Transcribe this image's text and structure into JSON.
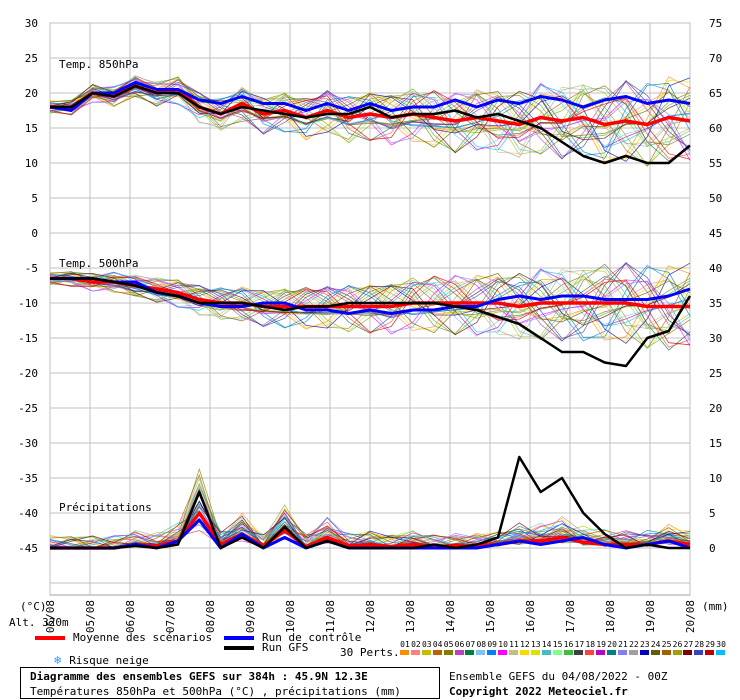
{
  "chart_data": {
    "type": "line",
    "panels": [
      {
        "label": "Temp. 850hPa",
        "left_ticks": [
          30,
          25,
          20,
          15,
          10,
          5,
          0
        ],
        "right_ticks": [
          75,
          70,
          65,
          60,
          55,
          50,
          45
        ],
        "ylim": [
          0,
          30
        ],
        "series": [
          {
            "name": "Moyenne des scénarios",
            "color": "#ff0000",
            "values": [
              18,
              18,
              20,
              19.5,
              21,
              20,
              20.5,
              18,
              17,
              18.5,
              17,
              17.5,
              16.5,
              17.5,
              16.5,
              17,
              16.5,
              17,
              16.5,
              16,
              16.5,
              16,
              15.5,
              16.5,
              16,
              16.5,
              15.5,
              16,
              15.5,
              16.5,
              16
            ]
          },
          {
            "name": "Run de contrôle",
            "color": "#0000ff",
            "values": [
              18,
              17.5,
              20,
              20,
              21.5,
              20.5,
              20.5,
              19,
              18.5,
              19.5,
              18.5,
              18.5,
              17.5,
              18.5,
              17.5,
              18.5,
              17.5,
              18,
              18,
              19,
              18,
              19,
              18.5,
              19.5,
              19,
              18,
              19,
              19.5,
              18.5,
              19,
              18.5
            ]
          },
          {
            "name": "Run GFS",
            "color": "#000000",
            "values": [
              18,
              18,
              20,
              19.5,
              21,
              20,
              20,
              18,
              17,
              18,
              17.5,
              17,
              16.5,
              17,
              17,
              18,
              16.5,
              17,
              17,
              17.5,
              16.5,
              17,
              16,
              15,
              13,
              11,
              10,
              11,
              10,
              10,
              12.5
            ]
          }
        ]
      },
      {
        "label": "Temp. 500hPa",
        "left_ticks": [
          -5,
          -10,
          -15,
          -20,
          -25,
          -30,
          -35,
          -40,
          -45
        ],
        "right_ticks": [
          45,
          40,
          35,
          30,
          25,
          20,
          15,
          10,
          5,
          0
        ],
        "ylim": [
          -45,
          -5
        ],
        "series": [
          {
            "name": "Moyenne des scénarios",
            "color": "#ff0000",
            "values": [
              -6.5,
              -6.5,
              -7,
              -7,
              -7.5,
              -8,
              -8.5,
              -9.5,
              -10,
              -10,
              -10.5,
              -10.5,
              -10.5,
              -10.5,
              -10.5,
              -10.5,
              -10.5,
              -10,
              -10,
              -10,
              -10,
              -10,
              -10.5,
              -10,
              -10,
              -10,
              -10,
              -10,
              -10.5,
              -10.5,
              -10.5
            ]
          },
          {
            "name": "Run de contrôle",
            "color": "#0000ff",
            "values": [
              -6.5,
              -6.5,
              -6.5,
              -7,
              -7,
              -8.5,
              -9,
              -10,
              -10.5,
              -10.5,
              -10,
              -10,
              -11,
              -11,
              -11.5,
              -11,
              -11.5,
              -11,
              -11,
              -10.5,
              -10.5,
              -9.5,
              -9,
              -9.5,
              -9,
              -9,
              -9.5,
              -9.5,
              -9.5,
              -9,
              -8
            ]
          },
          {
            "name": "Run GFS",
            "color": "#000000",
            "values": [
              -6.5,
              -6.5,
              -6.5,
              -7,
              -7.5,
              -8.5,
              -9,
              -10,
              -10,
              -10,
              -10.5,
              -11,
              -10.5,
              -10.5,
              -10,
              -10,
              -10,
              -10,
              -10,
              -10.5,
              -11,
              -12,
              -13,
              -15,
              -17,
              -17,
              -18.5,
              -19,
              -15,
              -14,
              -9
            ]
          }
        ]
      },
      {
        "label": "Précipitations",
        "right_ticks": [
          15,
          10,
          5,
          0
        ],
        "ylim": [
          0,
          15
        ],
        "series": [
          {
            "name": "Moyenne des scénarios",
            "color": "#ff0000",
            "values": [
              0,
              0,
              0,
              0,
              0.5,
              0.3,
              1,
              5,
              0.5,
              2,
              0.3,
              2.5,
              0.2,
              1.5,
              0.3,
              0.5,
              0.2,
              0.5,
              0.2,
              0.3,
              0.3,
              0.5,
              1,
              1,
              1.5,
              0.8,
              0.5,
              0.5,
              0.5,
              1,
              0.5
            ]
          },
          {
            "name": "Run de contrôle",
            "color": "#0000ff",
            "values": [
              0,
              0,
              0,
              0,
              0.5,
              0,
              1,
              4,
              0,
              2,
              0,
              1.5,
              0,
              1,
              0,
              0,
              0,
              0,
              0,
              0,
              0,
              0.5,
              1,
              0.5,
              1,
              1.5,
              0.5,
              0,
              0.5,
              1,
              0
            ]
          },
          {
            "name": "Run GFS",
            "color": "#000000",
            "values": [
              0,
              0,
              0,
              0,
              0.3,
              0,
              0.5,
              8,
              0,
              1.5,
              0,
              3,
              0,
              1,
              0,
              0,
              0,
              0,
              0.5,
              0,
              0.5,
              1.5,
              13,
              8,
              10,
              5,
              2,
              0,
              0.5,
              0,
              0
            ]
          }
        ]
      }
    ],
    "x_labels": [
      "05/08",
      "05/08",
      "06/08",
      "07/08",
      "08/08",
      "09/08",
      "10/08",
      "11/08",
      "12/08",
      "13/08",
      "14/08",
      "15/08",
      "16/08",
      "17/08",
      "18/08",
      "19/08",
      "20/08"
    ],
    "x_unit_left": "(°C)",
    "x_unit_right": "(mm)",
    "altitude": "Alt. 320m",
    "legend": {
      "mean": "Moyenne des scénarios",
      "control": "Run de contrôle",
      "gfs": "Run GFS",
      "snow": "Risque neige",
      "perts": "30 Perts."
    },
    "pert_labels": [
      "01",
      "02",
      "03",
      "04",
      "05",
      "06",
      "07",
      "08",
      "09",
      "10",
      "11",
      "12",
      "13",
      "14",
      "15",
      "16",
      "17",
      "18",
      "19",
      "20",
      "21",
      "22",
      "23",
      "24",
      "25",
      "26",
      "27",
      "28",
      "29",
      "30"
    ],
    "pert_colors": [
      "#ff8c00",
      "#ff8080",
      "#c0c000",
      "#c06000",
      "#808000",
      "#c040c0",
      "#008040",
      "#80c0ff",
      "#0080ff",
      "#ff00ff",
      "#c0c080",
      "#ffd700",
      "#e0e000",
      "#40c0c0",
      "#80ff80",
      "#40c040",
      "#404040",
      "#ff4040",
      "#c000c0",
      "#008080",
      "#8080ff",
      "#a0a0a0",
      "#0000c0",
      "#606000",
      "#a06000",
      "#a0a000",
      "#800000",
      "#4040c0",
      "#c00000",
      "#00c0ff"
    ]
  },
  "footer": {
    "title": "Diagramme des ensembles GEFS sur 384h : 45.9N 12.3E",
    "subtitle": "Températures 850hPa et 500hPa (°C) , précipitations (mm)",
    "run": "Ensemble GEFS du 04/08/2022 - 00Z",
    "copyright": "Copyright 2022 Meteociel.fr"
  }
}
